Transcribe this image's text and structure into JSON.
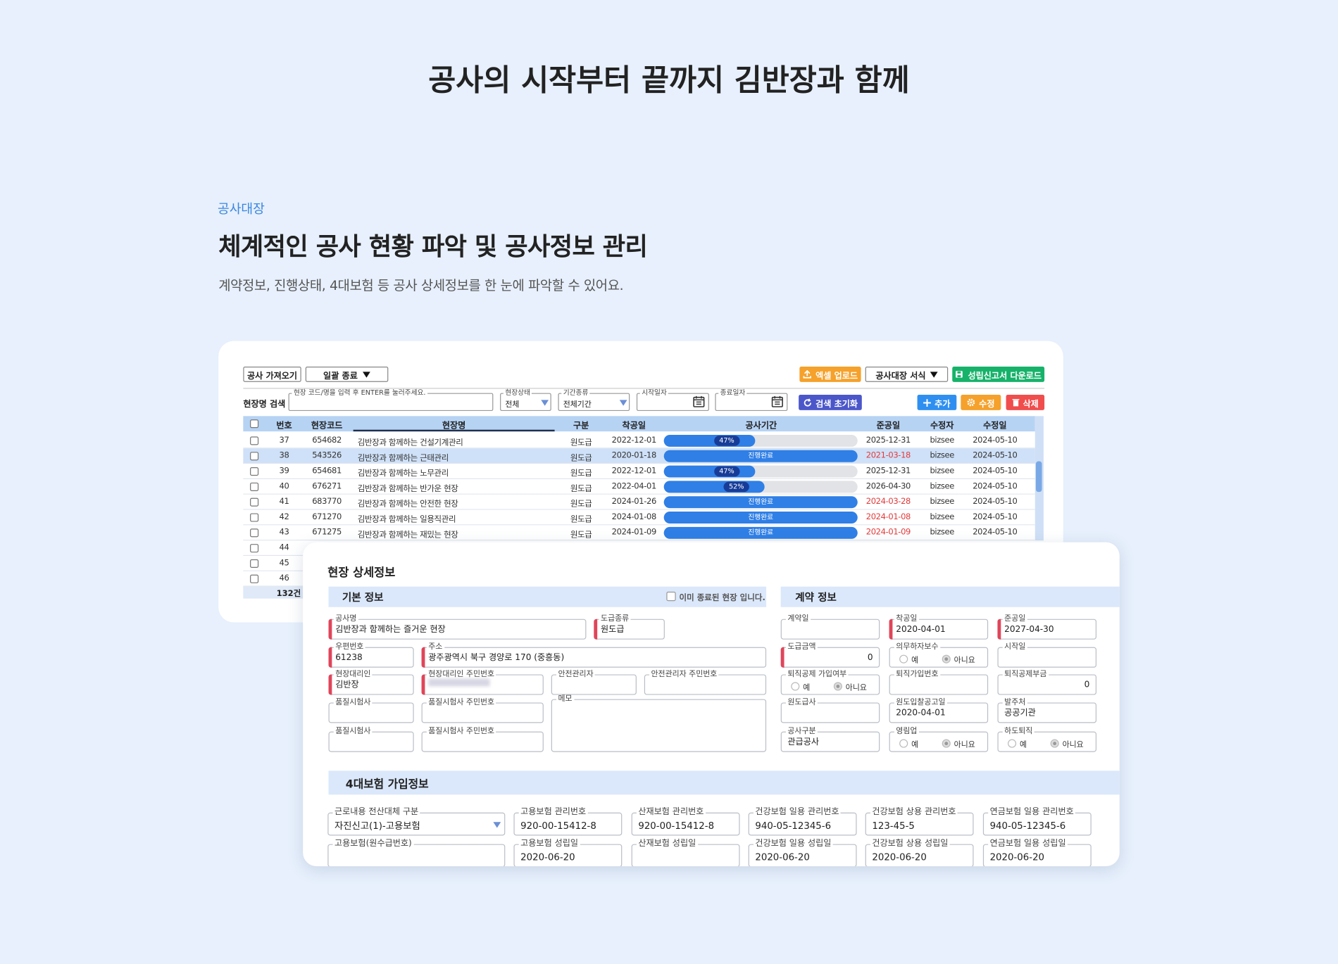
{
  "header": {
    "title": "공사의 시작부터 끝까지  김반장과 함께",
    "eyebrow": "공사대장",
    "heading": "체계적인 공사 현황 파악 및 공사정보 관리",
    "description": "계약정보, 진행상태, 4대보험 등 공사 상세정보를 한 눈에 파악할 수 있어요."
  },
  "list_panel": {
    "toolbar_left": [
      {
        "label": "공사 가져오기"
      },
      {
        "label": "일괄 종료",
        "dropdown": true
      }
    ],
    "toolbar_right": [
      {
        "label": "엑셀 업로드",
        "color": "#f5a12b"
      },
      {
        "label": "공사대장 서식",
        "dropdown": true
      },
      {
        "label": "성립신고서 다운로드",
        "color": "#17b26a"
      }
    ],
    "search_label": "현장명 검색",
    "search_fields": [
      {
        "label": "현장 코드/명을 입력 후 ENTER를 눌러주세요."
      },
      {
        "label": "현장상태",
        "value": "전체",
        "dropdown": true
      },
      {
        "label": "기간종류",
        "value": "전체기간",
        "dropdown": true
      },
      {
        "label": "시작일자",
        "calendar": true
      },
      {
        "label": "종료일자",
        "calendar": true
      }
    ],
    "actions": [
      {
        "label": "검색 초기화",
        "color": "#4b57c9"
      },
      {
        "label": "추가",
        "color": "#2f8ff0"
      },
      {
        "label": "수정",
        "color": "#f5a12b"
      },
      {
        "label": "삭제",
        "color": "#f04d4d"
      }
    ],
    "columns": [
      "번호",
      "현장코드",
      "현장명",
      "구분",
      "착공일",
      "공사기간",
      "준공일",
      "수정자",
      "수정일"
    ],
    "rows": [
      {
        "cells": [
          37,
          "654682",
          "김반장과 함께하는 건설기계관리",
          "원도급",
          "2022-12-01",
          {
            "value": 47,
            "label": "47%"
          },
          "2025-12-31",
          "bizsee",
          "2024-05-10"
        ]
      },
      {
        "cells": [
          38,
          "543526",
          "김반장과 함께하는 근태관리",
          "원도급",
          "2020-01-18",
          "진행완료",
          "2021-03-18",
          "bizsee",
          "2024-05-10"
        ],
        "overdue": true
      },
      {
        "cells": [
          39,
          "654681",
          "김반장과 함께하는 노무관리",
          "원도급",
          "2022-12-01",
          {
            "value": 47,
            "label": "47%"
          },
          "2025-12-31",
          "bizsee",
          "2024-05-10"
        ]
      },
      {
        "cells": [
          40,
          "676271",
          "김반장과 함께하는 반가운 현장",
          "원도급",
          "2022-04-01",
          {
            "value": 52,
            "label": "52%"
          },
          "2026-04-30",
          "bizsee",
          "2024-05-10"
        ]
      },
      {
        "cells": [
          41,
          "683770",
          "김반장과 함께하는 안전한 현장",
          "원도급",
          "2024-01-26",
          "진행완료",
          "2024-03-28",
          "bizsee",
          "2024-05-10"
        ],
        "overdue": true
      },
      {
        "cells": [
          42,
          "671270",
          "김반장과 함께하는 일용직관리",
          "원도급",
          "2024-01-08",
          "진행완료",
          "2024-01-08",
          "bizsee",
          "2024-05-10"
        ],
        "overdue": true
      },
      {
        "cells": [
          43,
          "671275",
          "김반장과 함께하는 재밌는 현장",
          "원도급",
          "2024-01-09",
          "진행완료",
          "2024-01-09",
          "bizsee",
          "2024-05-10"
        ],
        "overdue": true
      },
      {
        "cells": [
          44
        ]
      },
      {
        "cells": [
          45
        ]
      },
      {
        "cells": [
          46
        ]
      }
    ],
    "selected_row": 1,
    "total": "132건"
  },
  "detail_panel": {
    "title": "현장 상세정보",
    "basic": {
      "title": "기본 정보",
      "closed_checkbox": "이미 종료된 현장 입니다.",
      "fields": [
        {
          "label": "공사명",
          "value": "김반장과 함께하는 즐거운 현장",
          "required": true
        },
        {
          "label": "도급종류",
          "value": "원도급",
          "required": true
        },
        {
          "label": "우편번호",
          "value": "61238",
          "required": true
        },
        {
          "label": "주소",
          "value": "광주광역시 북구 경양로 170 (중흥동)",
          "required": true
        },
        {
          "label": "현장대리인",
          "value": "김반장",
          "required": true
        },
        {
          "label": "현장대리인 주민번호",
          "required": true
        },
        {
          "label": "안전관리자"
        },
        {
          "label": "안전관리자 주민번호"
        },
        {
          "label": "품질시험사"
        },
        {
          "label": "품질시험사 주민번호"
        },
        {
          "label": "메모"
        },
        {
          "label": "품질시험사"
        },
        {
          "label": "품질시험사 주민번호"
        }
      ]
    },
    "contract": {
      "title": "계약 정보",
      "fields": [
        {
          "label": "계약일"
        },
        {
          "label": "착공일",
          "value": "2020-04-01",
          "required": true
        },
        {
          "label": "준공일",
          "value": "2027-04-30",
          "required": true
        },
        {
          "label": "도급금액",
          "value": 0,
          "required": true
        },
        {
          "label": "의무하자보수",
          "options": [
            "예",
            "아니요"
          ],
          "selected": 1
        },
        {
          "label": "시작일"
        },
        {
          "label": "퇴직공제 가입여부",
          "options": [
            "예",
            "아니요"
          ],
          "selected": 1
        },
        {
          "label": "퇴직가입번호"
        },
        {
          "label": "퇴직공제부금",
          "value": 0
        },
        {
          "label": "원도급사"
        },
        {
          "label": "원도입찰공고일",
          "value": "2020-04-01"
        },
        {
          "label": "발주처",
          "value": "공공기관"
        },
        {
          "label": "공사구분",
          "value": "관급공사"
        },
        {
          "label": "영림업",
          "options": [
            "예",
            "아니요"
          ],
          "selected": 1
        },
        {
          "label": "하도퇴직",
          "options": [
            "예",
            "아니요"
          ],
          "selected": 1
        }
      ]
    },
    "insurance": {
      "title": "4대보험 가입정보",
      "fields": [
        {
          "label": "근로내용 전산대체 구분",
          "value": "자진신고(1)-고용보험",
          "dropdown": true
        },
        {
          "label": "고용보험 관리번호",
          "value": "920-00-15412-8"
        },
        {
          "label": "산재보험 관리번호",
          "value": "920-00-15412-8"
        },
        {
          "label": "건강보험 일용 관리번호",
          "value": "940-05-12345-6"
        },
        {
          "label": "건강보험 상용 관리번호",
          "value": "123-45-5"
        },
        {
          "label": "연금보험 일용 관리번호",
          "value": "940-05-12345-6"
        },
        {
          "label": "고용보험(원수급번호)"
        },
        {
          "label": "고용보험 성립일",
          "value": "2020-06-20"
        },
        {
          "label": "산재보험 성립일"
        },
        {
          "label": "건강보험 일용 성립일",
          "value": "2020-06-20"
        },
        {
          "label": "건강보험 상용 성립일",
          "value": "2020-06-20"
        },
        {
          "label": "연금보험 일용 성립일",
          "value": "2020-06-20"
        }
      ]
    }
  }
}
